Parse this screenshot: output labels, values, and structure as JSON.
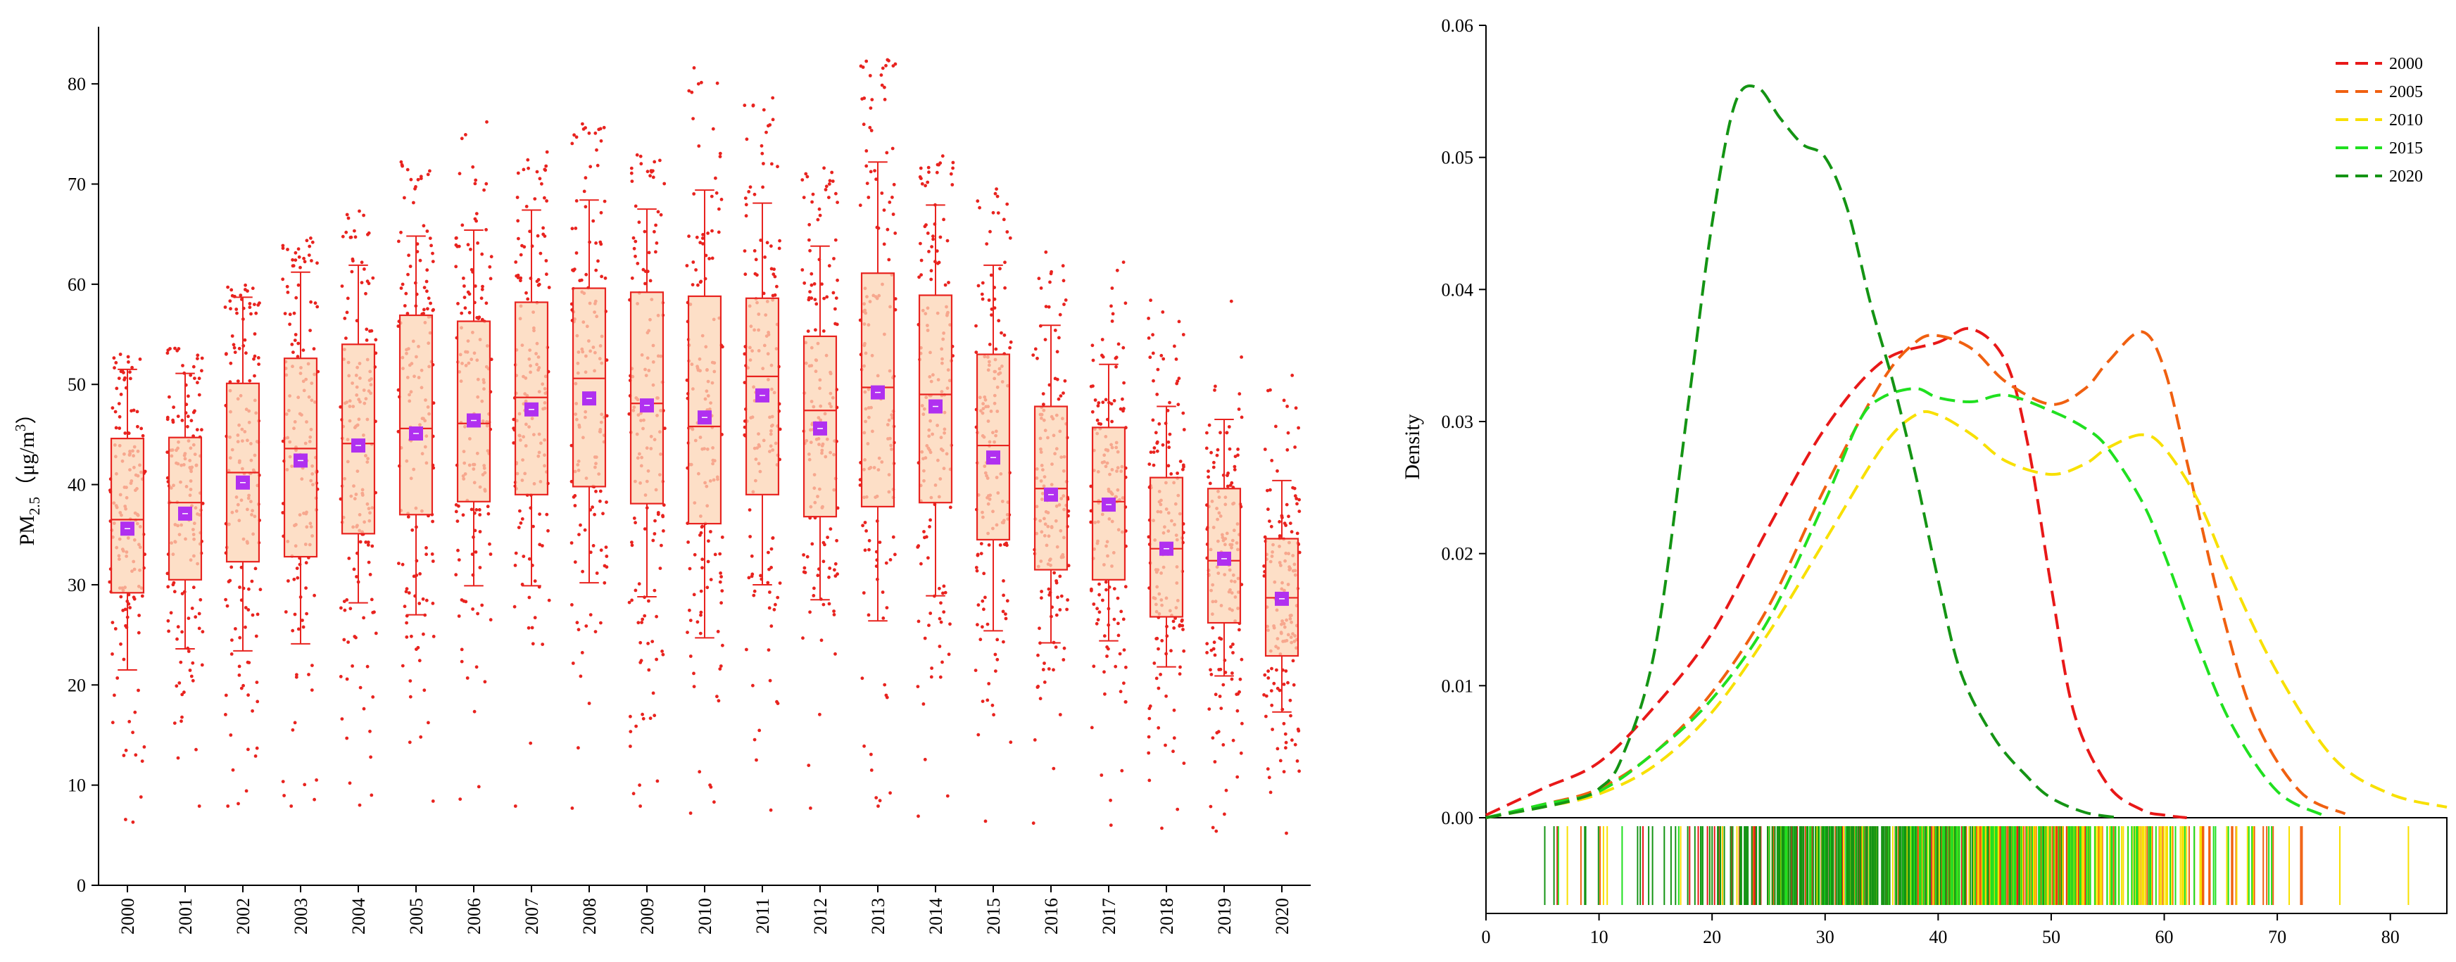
{
  "chart_data": [
    {
      "type": "box",
      "title": "",
      "xlabel": "",
      "ylabel": {
        "base": "PM",
        "sub": "2.5",
        "unit_open": "（μg/m",
        "unit_sup": "3",
        "unit_close": "）"
      },
      "ylim": [
        0,
        85
      ],
      "yticks": [
        0,
        10,
        20,
        30,
        40,
        50,
        60,
        70,
        80
      ],
      "categories": [
        "2000",
        "2001",
        "2002",
        "2003",
        "2004",
        "2005",
        "2006",
        "2007",
        "2008",
        "2009",
        "2010",
        "2011",
        "2012",
        "2013",
        "2014",
        "2015",
        "2016",
        "2017",
        "2018",
        "2019",
        "2020"
      ],
      "q1": [
        29.2,
        30.5,
        32.3,
        32.8,
        35.1,
        37.0,
        38.3,
        39.0,
        39.8,
        38.1,
        36.1,
        39.0,
        36.8,
        37.8,
        38.2,
        34.5,
        31.5,
        30.5,
        26.8,
        26.2,
        22.9
      ],
      "median": [
        36.5,
        38.2,
        41.2,
        43.6,
        44.1,
        45.6,
        46.1,
        48.7,
        50.6,
        48.1,
        45.8,
        50.8,
        47.4,
        49.7,
        49.0,
        43.9,
        39.6,
        38.3,
        33.6,
        32.4,
        28.7
      ],
      "q3": [
        44.6,
        44.7,
        50.1,
        52.6,
        54.0,
        56.9,
        56.3,
        58.2,
        59.6,
        59.2,
        58.8,
        58.6,
        54.8,
        61.1,
        58.9,
        53.0,
        47.8,
        45.7,
        40.7,
        39.6,
        34.6
      ],
      "whisker_low": [
        21.5,
        23.6,
        23.4,
        24.1,
        28.2,
        27.0,
        29.9,
        29.9,
        30.2,
        28.8,
        24.7,
        30.0,
        28.5,
        26.4,
        28.9,
        25.4,
        24.2,
        24.4,
        21.8,
        20.9,
        17.3
      ],
      "whisker_high": [
        51.5,
        51.1,
        58.7,
        61.2,
        61.9,
        64.8,
        65.4,
        67.4,
        68.4,
        67.5,
        69.4,
        68.1,
        63.8,
        72.2,
        67.9,
        61.9,
        55.9,
        52.0,
        47.8,
        46.5,
        40.4
      ],
      "mean": [
        35.6,
        37.1,
        40.2,
        42.4,
        43.9,
        45.1,
        46.4,
        47.5,
        48.6,
        47.9,
        46.7,
        48.9,
        45.6,
        49.2,
        47.8,
        42.7,
        39.0,
        38.0,
        33.6,
        32.6,
        28.6
      ],
      "data_min": [
        6.3,
        7.9,
        7.9,
        7.9,
        8.0,
        8.4,
        8.6,
        7.9,
        7.7,
        7.9,
        7.2,
        7.5,
        7.7,
        7.9,
        6.9,
        6.4,
        6.2,
        6.0,
        5.7,
        5.4,
        5.2
      ],
      "data_max": [
        53.0,
        53.6,
        59.9,
        64.6,
        67.3,
        72.2,
        76.2,
        73.2,
        76.0,
        72.9,
        81.6,
        78.6,
        71.6,
        82.4,
        72.8,
        69.5,
        63.2,
        62.2,
        58.4,
        58.3,
        50.9
      ],
      "box_fill": "#fcd4b4",
      "box_edge": "#e8231f",
      "point_color": "#e8231f",
      "mean_color": "#b030f0",
      "grid": false
    },
    {
      "type": "line",
      "title": "",
      "xlabel": "",
      "ylabel": "Density",
      "xlim": [
        0,
        85
      ],
      "ylim": [
        0,
        0.06
      ],
      "xticks": [
        0,
        10,
        20,
        30,
        40,
        50,
        60,
        70,
        80
      ],
      "yticks": [
        "0.00",
        "0.01",
        "0.02",
        "0.03",
        "0.04",
        "0.05",
        "0.06"
      ],
      "legend_position": "top-right",
      "series": [
        {
          "name": "2000",
          "color": "#e81818",
          "x": [
            0,
            5,
            10,
            15,
            20,
            25,
            30,
            35,
            40,
            43,
            46,
            48,
            50,
            52,
            55,
            58,
            60,
            62
          ],
          "y": [
            0.0002,
            0.0022,
            0.0042,
            0.0085,
            0.014,
            0.022,
            0.0295,
            0.0345,
            0.036,
            0.037,
            0.0345,
            0.028,
            0.0175,
            0.008,
            0.0025,
            0.0006,
            0.0002,
            0
          ]
        },
        {
          "name": "2005",
          "color": "#f06010",
          "x": [
            0,
            5,
            10,
            15,
            20,
            25,
            30,
            35,
            38,
            40,
            43,
            46,
            50,
            53,
            55,
            58,
            60,
            62,
            65,
            68,
            72,
            76
          ],
          "y": [
            0,
            0.001,
            0.0022,
            0.005,
            0.0095,
            0.016,
            0.025,
            0.033,
            0.036,
            0.0365,
            0.0355,
            0.033,
            0.0313,
            0.0325,
            0.0345,
            0.0368,
            0.034,
            0.027,
            0.016,
            0.0075,
            0.002,
            0.0003
          ]
        },
        {
          "name": "2010",
          "color": "#f8e000",
          "x": [
            0,
            5,
            10,
            15,
            20,
            25,
            30,
            35,
            38,
            40,
            43,
            46,
            50,
            53,
            55,
            58,
            60,
            63,
            66,
            70,
            75,
            80,
            85
          ],
          "y": [
            0,
            0.0008,
            0.0018,
            0.004,
            0.008,
            0.014,
            0.021,
            0.028,
            0.0305,
            0.0305,
            0.029,
            0.027,
            0.026,
            0.0268,
            0.028,
            0.029,
            0.028,
            0.024,
            0.018,
            0.011,
            0.0045,
            0.0018,
            0.0008
          ]
        },
        {
          "name": "2015",
          "color": "#20e020",
          "x": [
            0,
            5,
            10,
            15,
            20,
            25,
            30,
            33,
            35,
            38,
            40,
            43,
            46,
            50,
            53,
            55,
            58,
            60,
            63,
            66,
            70,
            74
          ],
          "y": [
            0,
            0.001,
            0.002,
            0.005,
            0.009,
            0.015,
            0.024,
            0.03,
            0.0318,
            0.0325,
            0.0318,
            0.0315,
            0.032,
            0.0308,
            0.0295,
            0.028,
            0.024,
            0.02,
            0.013,
            0.007,
            0.002,
            0.0002
          ]
        },
        {
          "name": "2020",
          "color": "#149414",
          "x": [
            0,
            5,
            8,
            10,
            12,
            15,
            18,
            20,
            22,
            24,
            26,
            28,
            30,
            32,
            34,
            36,
            38,
            40,
            42,
            45,
            48,
            50,
            53,
            56
          ],
          "y": [
            0,
            0.0008,
            0.0014,
            0.0022,
            0.0045,
            0.013,
            0.032,
            0.045,
            0.054,
            0.0553,
            0.053,
            0.051,
            0.05,
            0.046,
            0.039,
            0.033,
            0.026,
            0.018,
            0.011,
            0.006,
            0.003,
            0.0015,
            0.0004,
            0
          ]
        }
      ],
      "rug": {
        "2000": {
          "min": 6.3,
          "max": 53.0,
          "center": 38.0,
          "spread": 11.0
        },
        "2005": {
          "min": 8.4,
          "max": 72.2,
          "center": 45.5,
          "spread": 12.0
        },
        "2010": {
          "min": 7.2,
          "max": 81.6,
          "center": 47.0,
          "spread": 13.0
        },
        "2015": {
          "min": 6.4,
          "max": 69.5,
          "center": 43.0,
          "spread": 11.5
        },
        "2020": {
          "min": 5.2,
          "max": 50.9,
          "center": 28.5,
          "spread": 8.5
        }
      }
    }
  ]
}
